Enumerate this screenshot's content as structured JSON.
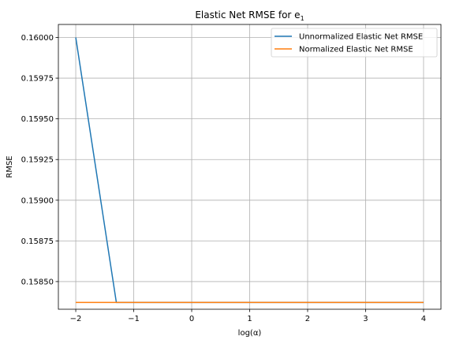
{
  "chart_data": {
    "type": "line",
    "title": "Elastic Net RMSE for e",
    "title_subscript": "1",
    "xlabel": "log(α)",
    "ylabel": "RMSE",
    "xlim": [
      -2.3,
      4.3
    ],
    "ylim": [
      0.15833,
      0.16008
    ],
    "xticks": [
      -2,
      -1,
      0,
      1,
      2,
      3,
      4
    ],
    "xtick_labels": [
      "−2",
      "−1",
      "0",
      "1",
      "2",
      "3",
      "4"
    ],
    "yticks": [
      0.1585,
      0.15875,
      0.159,
      0.15925,
      0.1595,
      0.15975,
      0.16
    ],
    "ytick_labels": [
      "0.15850",
      "0.15875",
      "0.15900",
      "0.15925",
      "0.15950",
      "0.15975",
      "0.16000"
    ],
    "grid": true,
    "legend_position": "top-right",
    "series": [
      {
        "name": "Unnormalized Elastic Net RMSE",
        "color": "#1f77b4",
        "x": [
          -2,
          -1.3,
          -1,
          0,
          1,
          2,
          3,
          4
        ],
        "y": [
          0.16,
          0.158372,
          0.158372,
          0.158372,
          0.158372,
          0.158372,
          0.158372,
          0.158372
        ]
      },
      {
        "name": "Normalized Elastic Net RMSE",
        "color": "#ff7f0e",
        "x": [
          -2,
          -1,
          0,
          1,
          2,
          3,
          4
        ],
        "y": [
          0.158372,
          0.158372,
          0.158372,
          0.158372,
          0.158372,
          0.158372,
          0.158372
        ]
      }
    ]
  }
}
